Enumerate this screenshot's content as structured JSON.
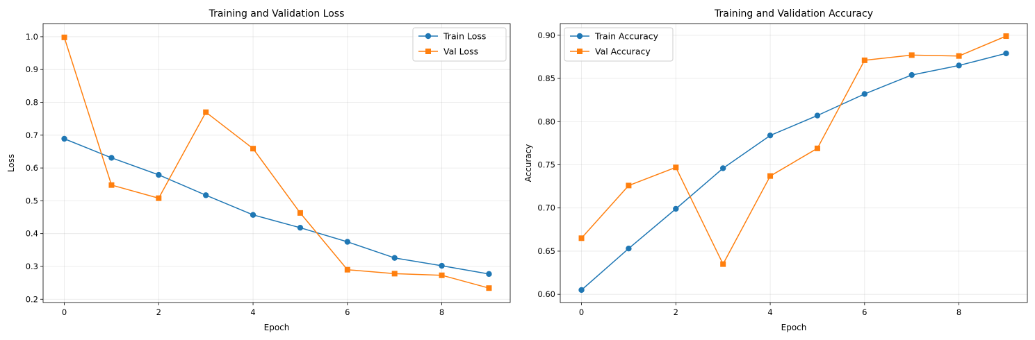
{
  "chart_data": [
    {
      "type": "line",
      "title": "Training and Validation Loss",
      "xlabel": "Epoch",
      "ylabel": "Loss",
      "xlim": [
        -0.45,
        9.45
      ],
      "ylim": [
        0.19,
        1.04
      ],
      "xticks": [
        0,
        2,
        4,
        6,
        8
      ],
      "xtick_labels": [
        "0",
        "2",
        "4",
        "6",
        "8"
      ],
      "yticks": [
        0.2,
        0.3,
        0.4,
        0.5,
        0.6,
        0.7,
        0.8,
        0.9,
        1.0
      ],
      "ytick_labels": [
        "0.2",
        "0.3",
        "0.4",
        "0.5",
        "0.6",
        "0.7",
        "0.8",
        "0.9",
        "1.0"
      ],
      "grid": true,
      "legend": "upper-right",
      "x": [
        0,
        1,
        2,
        3,
        4,
        5,
        6,
        7,
        8,
        9
      ],
      "series": [
        {
          "name": "Train Loss",
          "color": "#1f77b4",
          "marker": "circle",
          "values": [
            0.689,
            0.631,
            0.579,
            0.517,
            0.457,
            0.418,
            0.375,
            0.326,
            0.302,
            0.277
          ]
        },
        {
          "name": "Val Loss",
          "color": "#ff7f0e",
          "marker": "square",
          "values": [
            0.998,
            0.548,
            0.508,
            0.77,
            0.659,
            0.463,
            0.29,
            0.278,
            0.273,
            0.234
          ]
        }
      ]
    },
    {
      "type": "line",
      "title": "Training and Validation Accuracy",
      "xlabel": "Epoch",
      "ylabel": "Accuracy",
      "xlim": [
        -0.45,
        9.45
      ],
      "ylim": [
        0.5905,
        0.9135
      ],
      "xticks": [
        0,
        2,
        4,
        6,
        8
      ],
      "xtick_labels": [
        "0",
        "2",
        "4",
        "6",
        "8"
      ],
      "yticks": [
        0.6,
        0.65,
        0.7,
        0.75,
        0.8,
        0.85,
        0.9
      ],
      "ytick_labels": [
        "0.60",
        "0.65",
        "0.70",
        "0.75",
        "0.80",
        "0.85",
        "0.90"
      ],
      "grid": true,
      "legend": "upper-left",
      "x": [
        0,
        1,
        2,
        3,
        4,
        5,
        6,
        7,
        8,
        9
      ],
      "series": [
        {
          "name": "Train Accuracy",
          "color": "#1f77b4",
          "marker": "circle",
          "values": [
            0.605,
            0.653,
            0.699,
            0.746,
            0.784,
            0.807,
            0.832,
            0.854,
            0.865,
            0.879
          ]
        },
        {
          "name": "Val Accuracy",
          "color": "#ff7f0e",
          "marker": "square",
          "values": [
            0.665,
            0.726,
            0.747,
            0.635,
            0.737,
            0.769,
            0.871,
            0.877,
            0.876,
            0.899
          ]
        }
      ]
    }
  ]
}
